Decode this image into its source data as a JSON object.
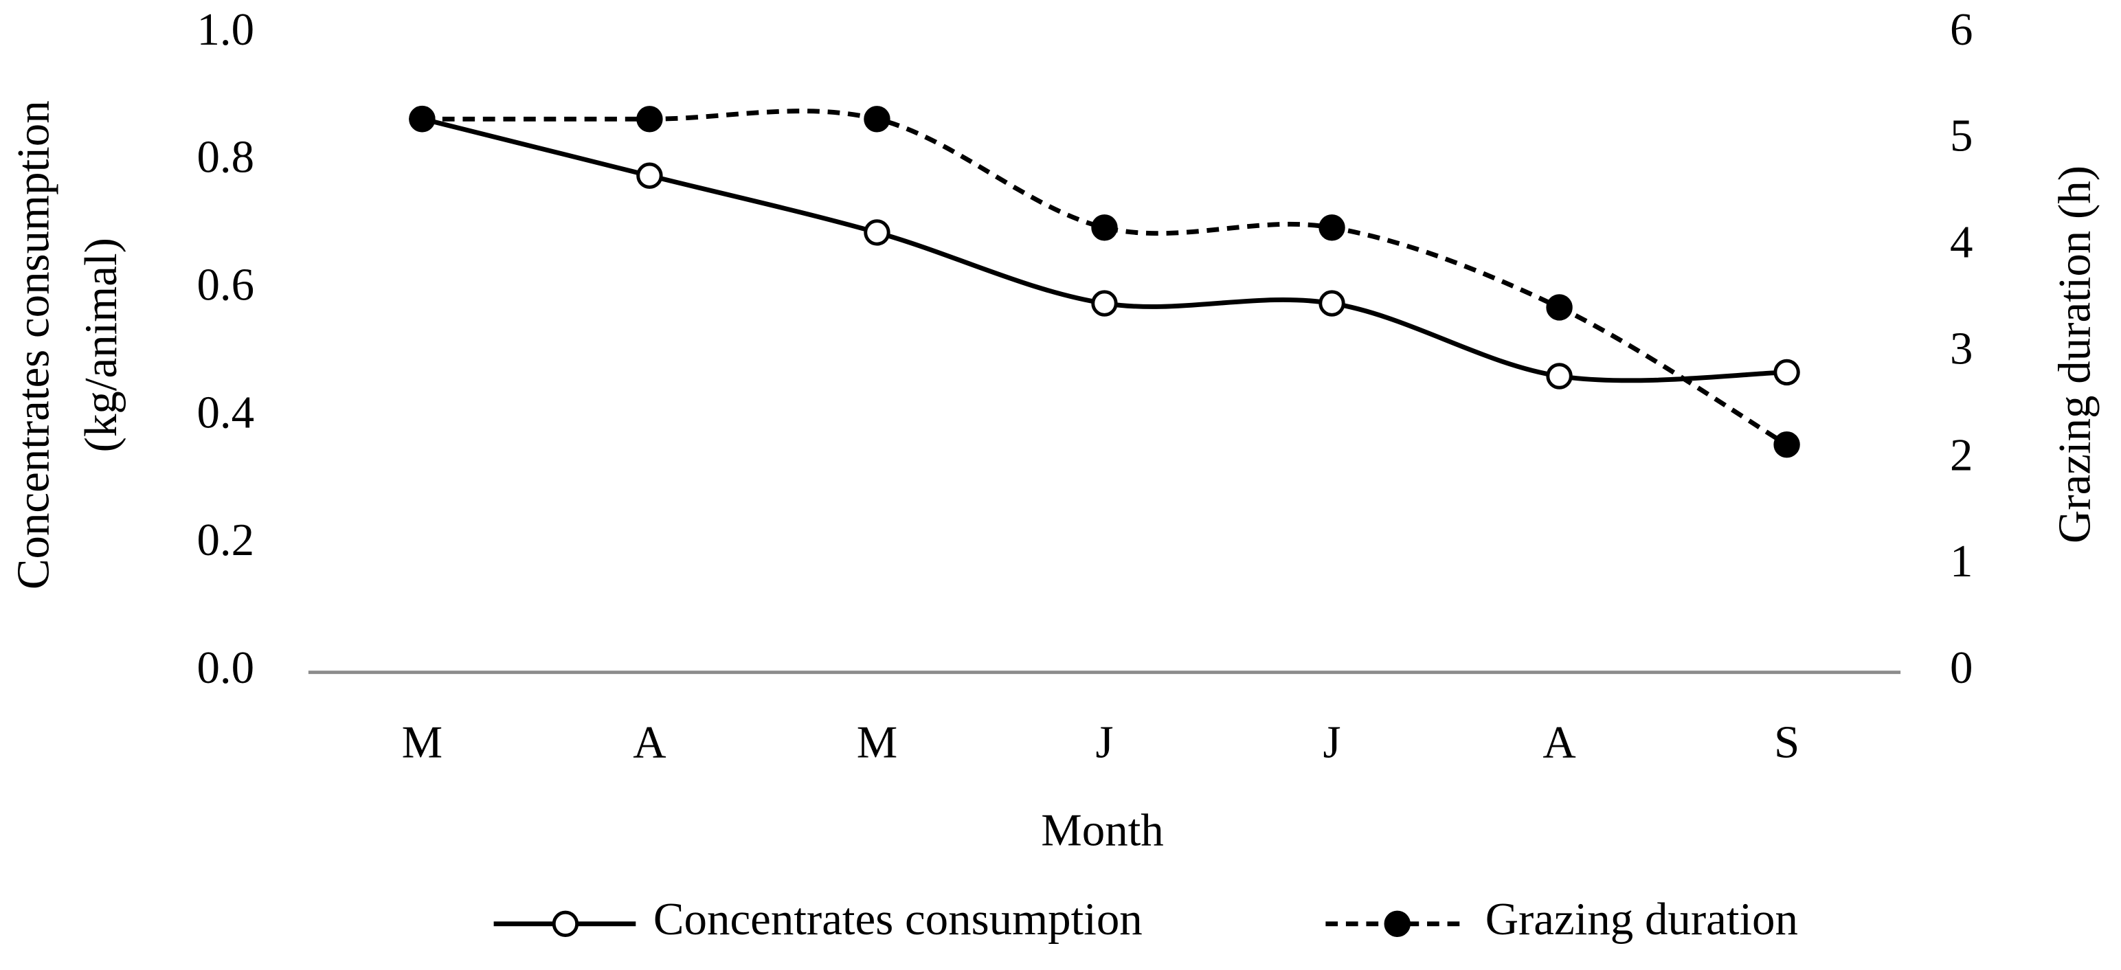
{
  "chart_data": {
    "type": "line",
    "categories": [
      "M",
      "A",
      "M",
      "J",
      "J",
      "A",
      "S"
    ],
    "xlabel": "Month",
    "ylabel": [
      "Concentrates consumption",
      "(kg/animal)"
    ],
    "y2label": "Grazing duration (h)",
    "ylim": [
      0,
      1.0
    ],
    "yticks": [
      {
        "value": 0,
        "label": "0.0"
      },
      0.2,
      0.4,
      0.6,
      0.8,
      {
        "value": 1,
        "label": "1.0"
      }
    ],
    "y2lim": [
      0,
      6
    ],
    "y2ticks": [
      0,
      1,
      2,
      3,
      4,
      5,
      6
    ],
    "grid": false,
    "smooth": true,
    "legend": "bottom",
    "series": [
      {
        "name": "Concentrates consumption",
        "color": "#000000",
        "line_style": "solid",
        "marker_fill": "#ffffff",
        "values": [
          0.867,
          0.778,
          0.689,
          0.578,
          0.578,
          0.464,
          0.47
        ]
      },
      {
        "name": "Grazing duration",
        "color": "#000000",
        "line_style": "dashed",
        "marker_fill": "#000000",
        "axis": "y2",
        "values": [
          5.2,
          5.2,
          5.2,
          4.18,
          4.18,
          3.43,
          2.14
        ]
      }
    ]
  }
}
